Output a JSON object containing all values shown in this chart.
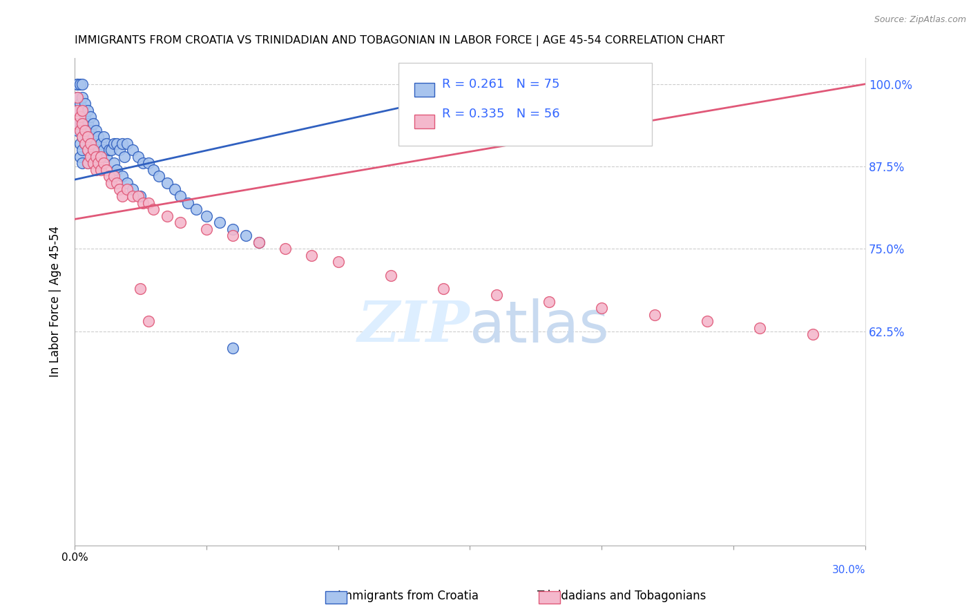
{
  "title": "IMMIGRANTS FROM CROATIA VS TRINIDADIAN AND TOBAGONIAN IN LABOR FORCE | AGE 45-54 CORRELATION CHART",
  "source": "Source: ZipAtlas.com",
  "ylabel": "In Labor Force | Age 45-54",
  "xlim": [
    0.0,
    0.3
  ],
  "ylim": [
    0.3,
    1.04
  ],
  "yticks": [
    0.625,
    0.75,
    0.875,
    1.0
  ],
  "ytick_labels": [
    "62.5%",
    "75.0%",
    "87.5%",
    "100.0%"
  ],
  "xticks": [
    0.0,
    0.05,
    0.1,
    0.15,
    0.2,
    0.25,
    0.3
  ],
  "legend_r1": "0.261",
  "legend_n1": "75",
  "legend_r2": "0.335",
  "legend_n2": "56",
  "color_blue": "#a8c4ee",
  "color_pink": "#f4b8cc",
  "line_color_blue": "#3060c0",
  "line_color_pink": "#e05878",
  "watermark_color": "#ddeeff",
  "blue_x": [
    0.001,
    0.001,
    0.001,
    0.001,
    0.001,
    0.002,
    0.002,
    0.002,
    0.002,
    0.002,
    0.003,
    0.003,
    0.003,
    0.003,
    0.003,
    0.003,
    0.003,
    0.004,
    0.004,
    0.004,
    0.004,
    0.005,
    0.005,
    0.005,
    0.005,
    0.005,
    0.006,
    0.006,
    0.006,
    0.006,
    0.007,
    0.007,
    0.007,
    0.008,
    0.008,
    0.008,
    0.009,
    0.009,
    0.01,
    0.01,
    0.011,
    0.011,
    0.012,
    0.012,
    0.013,
    0.014,
    0.015,
    0.016,
    0.017,
    0.018,
    0.019,
    0.02,
    0.022,
    0.024,
    0.026,
    0.028,
    0.03,
    0.032,
    0.035,
    0.038,
    0.04,
    0.043,
    0.046,
    0.05,
    0.055,
    0.06,
    0.065,
    0.07,
    0.015,
    0.016,
    0.018,
    0.02,
    0.022,
    0.025,
    0.06
  ],
  "blue_y": [
    1.0,
    1.0,
    0.98,
    0.96,
    0.93,
    1.0,
    0.97,
    0.94,
    0.91,
    0.89,
    1.0,
    0.98,
    0.96,
    0.94,
    0.92,
    0.9,
    0.88,
    0.97,
    0.95,
    0.93,
    0.91,
    0.96,
    0.94,
    0.92,
    0.9,
    0.88,
    0.95,
    0.93,
    0.91,
    0.89,
    0.94,
    0.92,
    0.9,
    0.93,
    0.91,
    0.89,
    0.92,
    0.9,
    0.91,
    0.89,
    0.92,
    0.9,
    0.91,
    0.89,
    0.9,
    0.9,
    0.91,
    0.91,
    0.9,
    0.91,
    0.89,
    0.91,
    0.9,
    0.89,
    0.88,
    0.88,
    0.87,
    0.86,
    0.85,
    0.84,
    0.83,
    0.82,
    0.81,
    0.8,
    0.79,
    0.78,
    0.77,
    0.76,
    0.88,
    0.87,
    0.86,
    0.85,
    0.84,
    0.83,
    0.6
  ],
  "pink_x": [
    0.001,
    0.001,
    0.001,
    0.002,
    0.002,
    0.003,
    0.003,
    0.003,
    0.004,
    0.004,
    0.005,
    0.005,
    0.005,
    0.006,
    0.006,
    0.007,
    0.007,
    0.008,
    0.008,
    0.009,
    0.01,
    0.01,
    0.011,
    0.012,
    0.013,
    0.014,
    0.015,
    0.016,
    0.017,
    0.018,
    0.02,
    0.022,
    0.024,
    0.026,
    0.028,
    0.03,
    0.035,
    0.04,
    0.05,
    0.06,
    0.07,
    0.08,
    0.09,
    0.1,
    0.12,
    0.14,
    0.16,
    0.18,
    0.2,
    0.22,
    0.24,
    0.26,
    0.28,
    0.025,
    0.028,
    0.15
  ],
  "pink_y": [
    0.98,
    0.96,
    0.94,
    0.95,
    0.93,
    0.96,
    0.94,
    0.92,
    0.93,
    0.91,
    0.92,
    0.9,
    0.88,
    0.91,
    0.89,
    0.9,
    0.88,
    0.89,
    0.87,
    0.88,
    0.89,
    0.87,
    0.88,
    0.87,
    0.86,
    0.85,
    0.86,
    0.85,
    0.84,
    0.83,
    0.84,
    0.83,
    0.83,
    0.82,
    0.82,
    0.81,
    0.8,
    0.79,
    0.78,
    0.77,
    0.76,
    0.75,
    0.74,
    0.73,
    0.71,
    0.69,
    0.68,
    0.67,
    0.66,
    0.65,
    0.64,
    0.63,
    0.62,
    0.69,
    0.64,
    1.0
  ],
  "blue_trendline_x": [
    0.0,
    0.13
  ],
  "blue_trendline_y": [
    0.855,
    0.97
  ],
  "pink_trendline_x": [
    0.0,
    0.3
  ],
  "pink_trendline_y": [
    0.795,
    1.0
  ]
}
